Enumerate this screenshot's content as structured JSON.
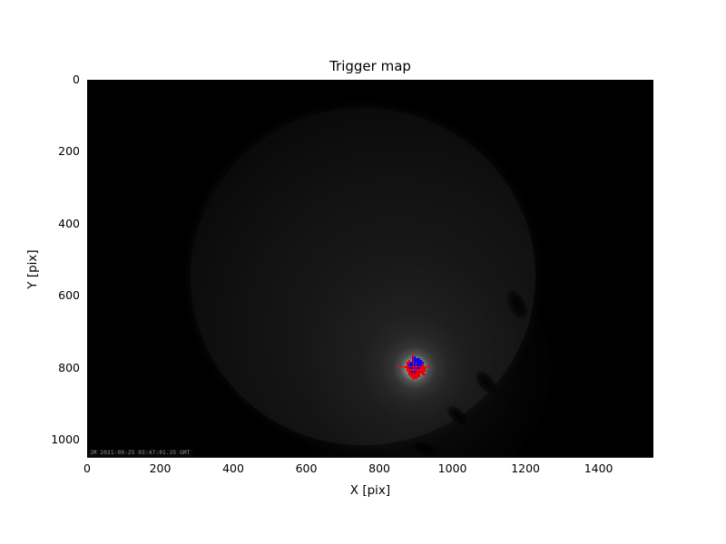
{
  "chart_data": {
    "type": "heatmap",
    "title": "Trigger map",
    "xlabel": "X [pix]",
    "ylabel": "Y [pix]",
    "x_ticks": [
      0,
      200,
      400,
      600,
      800,
      1000,
      1200,
      1400
    ],
    "y_ticks": [
      0,
      200,
      400,
      600,
      800,
      1000
    ],
    "xlim": [
      0,
      1550
    ],
    "ylim": [
      1050,
      0
    ],
    "grid": false,
    "legend": false,
    "description": "Night-sky camera frame: black background with faint circular lens field of view; a bright flash near (895, 800) px is overlaid by triggered-pixel clusters and crosshair markers.",
    "watermark": "JM 2021-09-25 03:47:01.35 GMT",
    "colors": {
      "triggered_pixel_red": "#e80000",
      "triggered_pixel_blue": "#0a0af0",
      "crosshair_red": "#ff0000",
      "background": "#000000",
      "figure_background": "#ffffff"
    },
    "trigger": {
      "x_pix": 895,
      "y_pix": 800
    },
    "crosshairs": [
      {
        "x": 893,
        "y": 797,
        "arm_x": 46,
        "arm_y": 38
      },
      {
        "x": 901,
        "y": 806,
        "arm_x": 26,
        "arm_y": 22
      }
    ],
    "trigger_pattern": {
      "x0": 869,
      "y0": 768,
      "cell_x": 5.2,
      "cell_y": 5.34,
      "rows": [
        "....BB......",
        "....BBBB....",
        "..R.BBBBB...",
        ".RRBBBBBBB..",
        ".RBBBBBBBR..",
        "RRBBBBBBRRR.",
        ".RRBBBBBRRR.",
        ".RRBBBBRRRR.",
        "..RRBBRRRR..",
        "..RRRRRR.RR.",
        "...RRRRR....",
        "....RRR....."
      ]
    }
  }
}
